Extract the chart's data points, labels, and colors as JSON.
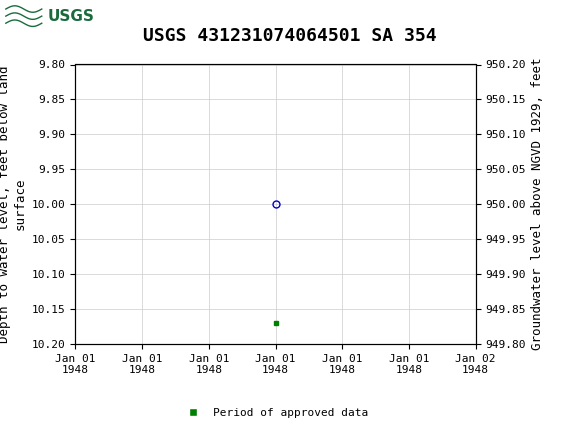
{
  "title": "USGS 431231074064501 SA 354",
  "title_fontsize": 13,
  "header_bg_color": "#1a6b3c",
  "header_text_color": "#ffffff",
  "plot_bg_color": "#ffffff",
  "grid_color": "#cccccc",
  "left_ylabel": "Depth to water level, feet below land\nsurface",
  "right_ylabel": "Groundwater level above NGVD 1929, feet",
  "ylabel_fontsize": 9,
  "ylim_left": [
    9.8,
    10.2
  ],
  "ylim_right": [
    949.8,
    950.2
  ],
  "left_yticks": [
    9.8,
    9.85,
    9.9,
    9.95,
    10.0,
    10.05,
    10.1,
    10.15,
    10.2
  ],
  "right_yticks": [
    949.8,
    949.85,
    949.9,
    949.95,
    950.0,
    950.05,
    950.1,
    950.15,
    950.2
  ],
  "data_point_y": 10.0,
  "data_point_color": "#0000cc",
  "data_point_marker": "o",
  "data_point_markersize": 5,
  "green_dot_y": 10.17,
  "green_dot_color": "#008000",
  "green_dot_marker": "s",
  "green_dot_markersize": 3,
  "xtick_positions": [
    0,
    1,
    2,
    3,
    4,
    5,
    6
  ],
  "xtick_labels": [
    "Jan 01\n1948",
    "Jan 01\n1948",
    "Jan 01\n1948",
    "Jan 01\n1948",
    "Jan 01\n1948",
    "Jan 01\n1948",
    "Jan 02\n1948"
  ],
  "tick_fontsize": 8,
  "legend_label": "Period of approved data",
  "legend_color": "#008000",
  "font_family": "monospace"
}
